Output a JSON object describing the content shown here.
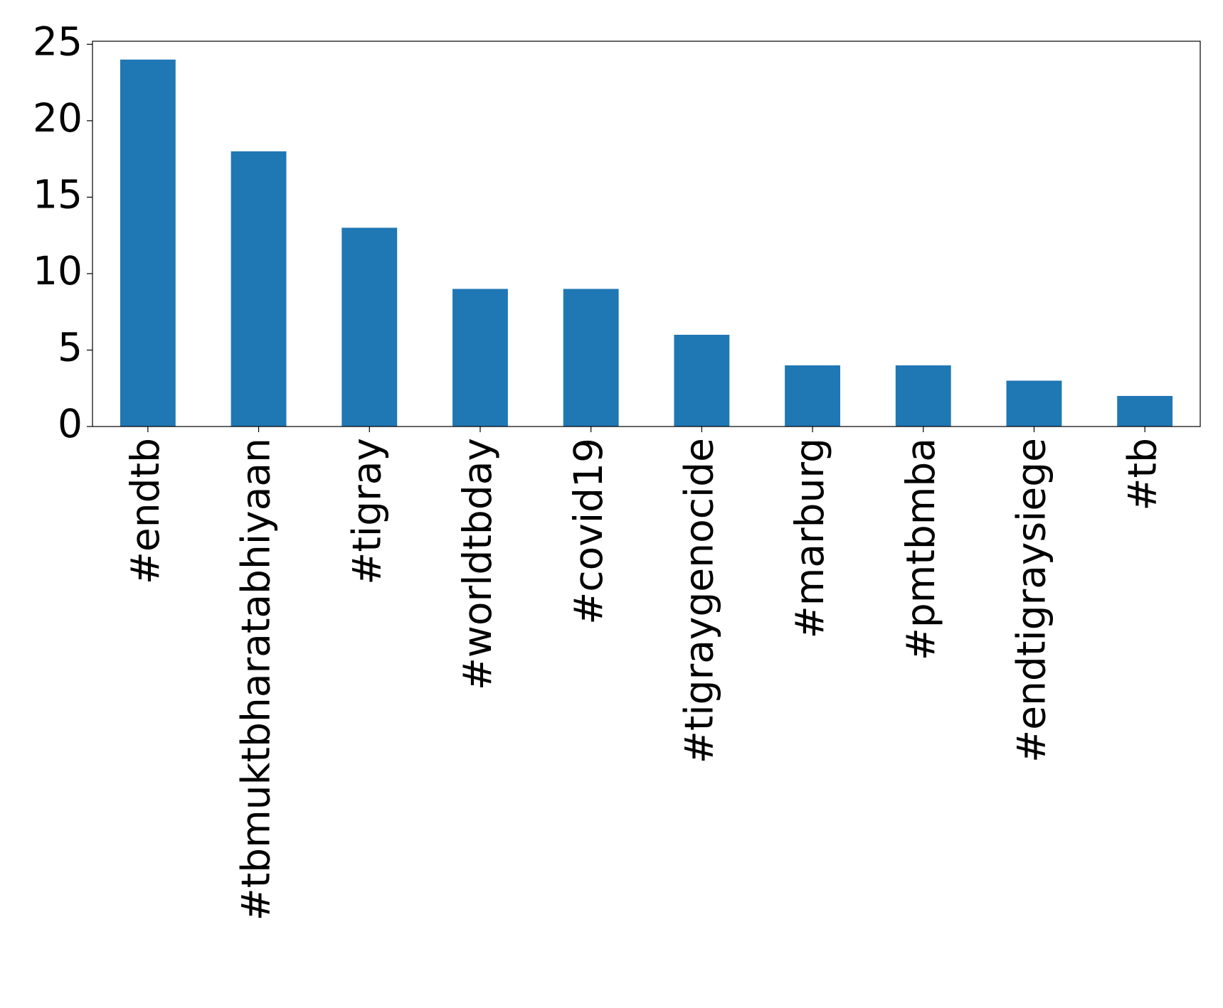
{
  "chart_data": {
    "type": "bar",
    "categories": [
      "#endtb",
      "#tbmuktbharatabhiyaan",
      "#tigray",
      "#worldtbday",
      "#covid19",
      "#tigraygenocide",
      "#marburg",
      "#pmtbmba",
      "#endtigraysiege",
      "#tb"
    ],
    "values": [
      24,
      18,
      13,
      9,
      9,
      6,
      4,
      4,
      3,
      2
    ],
    "color": "#1f77b4",
    "ylim": [
      0,
      25.2
    ],
    "yticks": [
      0,
      5,
      10,
      15,
      20,
      25
    ],
    "grid": false
  }
}
